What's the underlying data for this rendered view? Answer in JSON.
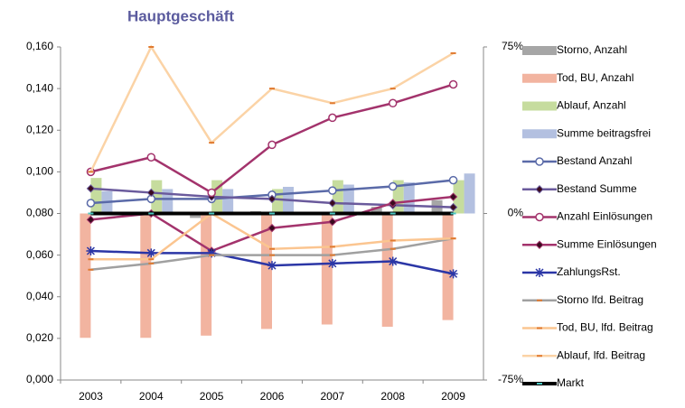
{
  "chart_data": {
    "type": "combo",
    "title": "Hauptgeschäft",
    "categories": [
      "2003",
      "2004",
      "2005",
      "2006",
      "2007",
      "2008",
      "2009"
    ],
    "ylim": [
      0,
      0.16
    ],
    "yticks": [
      {
        "value": 0,
        "label": "0,000"
      },
      {
        "value": 0.02,
        "label": "0,020"
      },
      {
        "value": 0.04,
        "label": "0,040"
      },
      {
        "value": 0.06,
        "label": "0,060"
      },
      {
        "value": 0.08,
        "label": "0,080"
      },
      {
        "value": 0.1,
        "label": "0,100"
      },
      {
        "value": 0.12,
        "label": "0,120"
      },
      {
        "value": 0.14,
        "label": "0,140"
      },
      {
        "value": 0.16,
        "label": "0,160"
      }
    ],
    "y2lim": [
      -75,
      75
    ],
    "y2ticks": [
      {
        "value": -75,
        "label": "-75%"
      },
      {
        "value": 0,
        "label": "0%"
      },
      {
        "value": 75,
        "label": "75%"
      }
    ],
    "legend": "right",
    "series": [
      {
        "name": "Storno, Anzahl",
        "type": "bar",
        "axis": "y2",
        "color": "#a6a6a6",
        "values": [
          0,
          0,
          -2,
          1,
          0,
          3,
          6
        ]
      },
      {
        "name": "Tod, BU, Anzahl",
        "type": "bar",
        "axis": "y2",
        "color": "#f2b4a0",
        "values": [
          -56,
          -56,
          -55,
          -52,
          -50,
          -51,
          -48
        ]
      },
      {
        "name": "Ablauf, Anzahl",
        "type": "bar",
        "axis": "y2",
        "color": "#c6dc9e",
        "values": [
          16,
          15,
          15,
          11,
          15,
          15,
          15
        ]
      },
      {
        "name": "Summe beitragsfrei",
        "type": "bar",
        "axis": "y2",
        "color": "#b3c0e0",
        "values": [
          10,
          11,
          11,
          12,
          13,
          14,
          18
        ]
      },
      {
        "name": "Bestand Anzahl",
        "type": "line",
        "marker": "circle",
        "color": "#5a6aa8",
        "values": [
          0.085,
          0.087,
          0.087,
          0.089,
          0.091,
          0.093,
          0.096
        ]
      },
      {
        "name": "Bestand Summe",
        "type": "line",
        "marker": "diamond",
        "color": "#6a5a9c",
        "values": [
          0.092,
          0.09,
          0.088,
          0.087,
          0.085,
          0.084,
          0.083
        ]
      },
      {
        "name": "Anzahl  Einlösungen",
        "type": "line",
        "marker": "circle",
        "color": "#a3336c",
        "values": [
          0.1,
          0.107,
          0.09,
          0.113,
          0.126,
          0.133,
          0.142
        ]
      },
      {
        "name": "Summe Einlösungen",
        "type": "line",
        "marker": "diamond",
        "color": "#a3336c",
        "values": [
          0.077,
          0.08,
          0.062,
          0.073,
          0.076,
          0.085,
          0.088
        ]
      },
      {
        "name": "ZahlungsRst.",
        "type": "line",
        "marker": "star",
        "color": "#2b36a6",
        "values": [
          0.062,
          0.061,
          0.061,
          0.055,
          0.056,
          0.057,
          0.051
        ]
      },
      {
        "name": "Storno lfd. Beitrag",
        "type": "line",
        "marker": "dash",
        "color": "#a0a0a0",
        "values": [
          0.053,
          0.056,
          0.06,
          0.06,
          0.06,
          0.063,
          0.068
        ]
      },
      {
        "name": "Tod, BU, lfd. Beitrag",
        "type": "line",
        "marker": "dash",
        "color": "#fbc590",
        "values": [
          0.058,
          0.058,
          0.08,
          0.063,
          0.064,
          0.067,
          0.068
        ]
      },
      {
        "name": "Ablauf, lfd. Beitrag",
        "type": "line",
        "marker": "dash",
        "color": "#fbd3a6",
        "values": [
          0.1,
          0.16,
          0.114,
          0.14,
          0.133,
          0.14,
          0.157
        ]
      },
      {
        "name": "Markt",
        "type": "line",
        "axis": "y2",
        "marker": "dash",
        "color": "#000000",
        "width": 4,
        "values": [
          0,
          0,
          0,
          0,
          0,
          0,
          0
        ]
      }
    ]
  }
}
